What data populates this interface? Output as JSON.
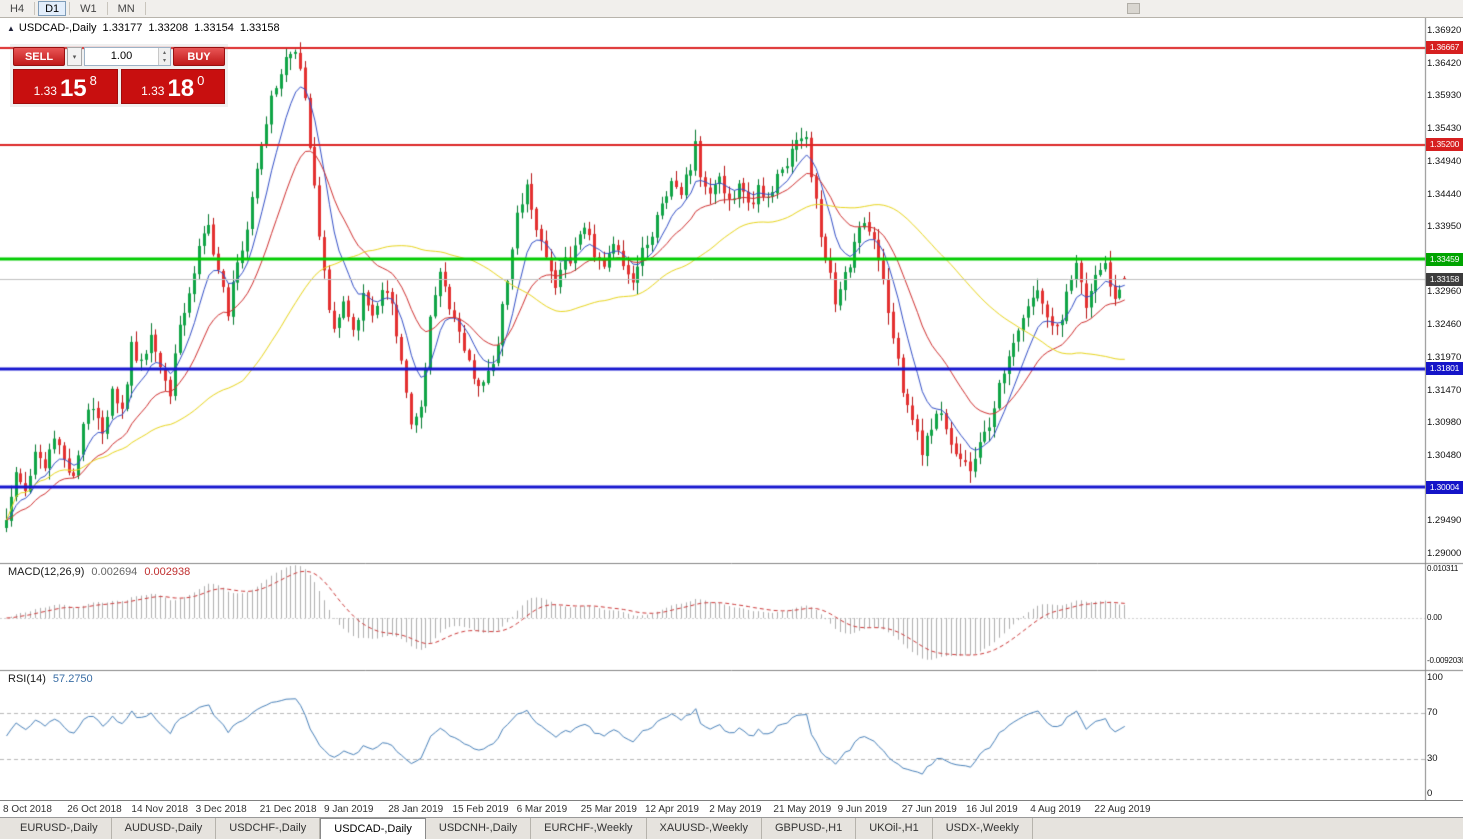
{
  "toolbar": {
    "periods": [
      {
        "label": "H4",
        "active": false
      },
      {
        "label": "D1",
        "active": true
      },
      {
        "label": "W1",
        "active": false
      },
      {
        "label": "MN",
        "active": false
      }
    ]
  },
  "chart_header": {
    "arrow_icon": "▲",
    "symbol": "USDCAD-,Daily",
    "open": "1.33177",
    "high": "1.33208",
    "low": "1.33154",
    "close": "1.33158"
  },
  "trade_panel": {
    "sell_label": "SELL",
    "buy_label": "BUY",
    "volume": "1.00",
    "dropdown_icon": "▾",
    "spin_up_icon": "▴",
    "spin_down_icon": "▾",
    "sell_price": {
      "prefix": "1.33",
      "big": "15",
      "sup": "8"
    },
    "buy_price": {
      "prefix": "1.33",
      "big": "18",
      "sup": "0"
    }
  },
  "price_axis": {
    "labels": [
      "1.36920",
      "1.36420",
      "1.35930",
      "1.35430",
      "1.34940",
      "1.34440",
      "1.33950",
      "1.32960",
      "1.32460",
      "1.31970",
      "1.31470",
      "1.30980",
      "1.30480",
      "1.29490",
      "1.29000"
    ]
  },
  "indicators": {
    "macd": {
      "name": "MACD(12,26,9)",
      "value": "0.002694",
      "signal_value": "0.002938",
      "axis_labels": [
        "0.010311",
        "0.00",
        "-0.0092030"
      ]
    },
    "rsi": {
      "name": "RSI(14)",
      "value": "57.2750",
      "axis_labels": [
        "100",
        "70",
        "30",
        "0"
      ]
    }
  },
  "chart_data": {
    "type": "candlestick",
    "symbol": "USDCAD-",
    "timeframe": "Daily",
    "bars": 233,
    "last_ohlc": {
      "open": 1.33177,
      "high": 1.33208,
      "low": 1.33154,
      "close": 1.33158
    },
    "visible_price_range": {
      "top": 1.3712,
      "bottom": 1.2886
    },
    "date_labels": [
      "8 Oct 2018",
      "26 Oct 2018",
      "14 Nov 2018",
      "3 Dec 2018",
      "21 Dec 2018",
      "9 Jan 2019",
      "28 Jan 2019",
      "15 Feb 2019",
      "6 Mar 2019",
      "25 Mar 2019",
      "12 Apr 2019",
      "2 May 2019",
      "21 May 2019",
      "9 Jun 2019",
      "27 Jun 2019",
      "16 Jul 2019",
      "4 Aug 2019",
      "22 Aug 2019"
    ],
    "hlines": [
      {
        "price": 1.36667,
        "label": "1.36667",
        "color": "#dc2424",
        "tag_bg": "#d62020",
        "width": 2
      },
      {
        "price": 1.352,
        "label": "1.35200",
        "color": "#dc2424",
        "tag_bg": "#d62020",
        "width": 2
      },
      {
        "price": 1.33459,
        "label": "1.33459",
        "color": "#00cc00",
        "tag_bg": "#00a400",
        "width": 3
      },
      {
        "price": 1.33158,
        "label": "1.33158",
        "color": "#c0c0c0",
        "tag_bg": "#3c3c3c",
        "width": 1
      },
      {
        "price": 1.31801,
        "label": "1.31801",
        "color": "#1616d0",
        "tag_bg": "#1414c8",
        "width": 3
      },
      {
        "price": 1.30004,
        "label": "1.30004",
        "color": "#1616d0",
        "tag_bg": "#1414c8",
        "width": 3
      }
    ],
    "moving_averages": [
      {
        "period": 8,
        "method": "ema",
        "color": "#3450c8"
      },
      {
        "period": 20,
        "method": "ema",
        "color": "#d03030"
      },
      {
        "period": 50,
        "method": "sma",
        "color": "#e8d51c"
      }
    ],
    "macd_series": {
      "fast": 12,
      "slow": 26,
      "signal": 9,
      "histogram_color": "#b0b0b0",
      "signal_color": "#cc3838",
      "range": [
        -0.01,
        0.0112
      ]
    },
    "rsi_series": {
      "period": 14,
      "color": "#4a82ba",
      "levels": [
        70,
        30
      ],
      "range": [
        0,
        100
      ]
    },
    "price_path_anchors": [
      [
        0,
        1.2958
      ],
      [
        2,
        1.3025
      ],
      [
        4,
        1.299
      ],
      [
        6,
        1.306
      ],
      [
        8,
        1.303
      ],
      [
        10,
        1.3085
      ],
      [
        12,
        1.304
      ],
      [
        14,
        1.301
      ],
      [
        16,
        1.3095
      ],
      [
        18,
        1.313
      ],
      [
        20,
        1.309
      ],
      [
        22,
        1.314
      ],
      [
        24,
        1.311
      ],
      [
        26,
        1.3215
      ],
      [
        28,
        1.3185
      ],
      [
        30,
        1.3235
      ],
      [
        32,
        1.318
      ],
      [
        34,
        1.314
      ],
      [
        36,
        1.325
      ],
      [
        38,
        1.33
      ],
      [
        40,
        1.336
      ],
      [
        42,
        1.3395
      ],
      [
        44,
        1.333
      ],
      [
        46,
        1.3265
      ],
      [
        48,
        1.334
      ],
      [
        50,
        1.34
      ],
      [
        52,
        1.348
      ],
      [
        54,
        1.356
      ],
      [
        56,
        1.361
      ],
      [
        58,
        1.365
      ],
      [
        60,
        1.366
      ],
      [
        62,
        1.36
      ],
      [
        64,
        1.345
      ],
      [
        66,
        1.332
      ],
      [
        68,
        1.324
      ],
      [
        70,
        1.328
      ],
      [
        72,
        1.324
      ],
      [
        74,
        1.329
      ],
      [
        76,
        1.3255
      ],
      [
        78,
        1.331
      ],
      [
        80,
        1.327
      ],
      [
        82,
        1.319
      ],
      [
        84,
        1.309
      ],
      [
        86,
        1.312
      ],
      [
        88,
        1.326
      ],
      [
        90,
        1.332
      ],
      [
        92,
        1.328
      ],
      [
        94,
        1.324
      ],
      [
        96,
        1.319
      ],
      [
        98,
        1.3155
      ],
      [
        100,
        1.3175
      ],
      [
        102,
        1.322
      ],
      [
        104,
        1.332
      ],
      [
        106,
        1.342
      ],
      [
        108,
        1.345
      ],
      [
        110,
        1.34
      ],
      [
        112,
        1.335
      ],
      [
        114,
        1.33
      ],
      [
        116,
        1.334
      ],
      [
        118,
        1.336
      ],
      [
        120,
        1.339
      ],
      [
        122,
        1.336
      ],
      [
        124,
        1.334
      ],
      [
        126,
        1.3375
      ],
      [
        128,
        1.334
      ],
      [
        130,
        1.332
      ],
      [
        132,
        1.3355
      ],
      [
        134,
        1.3385
      ],
      [
        136,
        1.342
      ],
      [
        138,
        1.3465
      ],
      [
        140,
        1.344
      ],
      [
        142,
        1.349
      ],
      [
        143,
        1.3515
      ],
      [
        144,
        1.348
      ],
      [
        146,
        1.3445
      ],
      [
        148,
        1.3475
      ],
      [
        150,
        1.3435
      ],
      [
        152,
        1.346
      ],
      [
        154,
        1.3425
      ],
      [
        156,
        1.3455
      ],
      [
        158,
        1.344
      ],
      [
        160,
        1.3475
      ],
      [
        162,
        1.3495
      ],
      [
        164,
        1.352
      ],
      [
        166,
        1.354
      ],
      [
        167,
        1.348
      ],
      [
        168,
        1.343
      ],
      [
        170,
        1.335
      ],
      [
        172,
        1.3285
      ],
      [
        174,
        1.332
      ],
      [
        176,
        1.3365
      ],
      [
        178,
        1.3405
      ],
      [
        180,
        1.337
      ],
      [
        182,
        1.331
      ],
      [
        184,
        1.323
      ],
      [
        186,
        1.315
      ],
      [
        188,
        1.31
      ],
      [
        190,
        1.306
      ],
      [
        192,
        1.3085
      ],
      [
        194,
        1.312
      ],
      [
        196,
        1.307
      ],
      [
        198,
        1.3045
      ],
      [
        200,
        1.3028
      ],
      [
        202,
        1.306
      ],
      [
        204,
        1.31
      ],
      [
        206,
        1.315
      ],
      [
        208,
        1.319
      ],
      [
        210,
        1.323
      ],
      [
        212,
        1.3265
      ],
      [
        214,
        1.33
      ],
      [
        216,
        1.326
      ],
      [
        218,
        1.3235
      ],
      [
        220,
        1.329
      ],
      [
        222,
        1.333
      ],
      [
        224,
        1.328
      ],
      [
        226,
        1.332
      ],
      [
        228,
        1.334
      ],
      [
        230,
        1.328
      ],
      [
        232,
        1.3316
      ]
    ]
  },
  "tabs": [
    {
      "label": "EURUSD-,Daily",
      "active": false
    },
    {
      "label": "AUDUSD-,Daily",
      "active": false
    },
    {
      "label": "USDCHF-,Daily",
      "active": false
    },
    {
      "label": "USDCAD-,Daily",
      "active": true
    },
    {
      "label": "USDCNH-,Daily",
      "active": false
    },
    {
      "label": "EURCHF-,Weekly",
      "active": false
    },
    {
      "label": "XAUUSD-,Weekly",
      "active": false
    },
    {
      "label": "GBPUSD-,H1",
      "active": false
    },
    {
      "label": "UKOil-,H1",
      "active": false
    },
    {
      "label": "USDX-,Weekly",
      "active": false
    }
  ],
  "colors": {
    "background": "#ffffff",
    "up_fill": "#10a546",
    "up_border": "#067a31",
    "down_fill": "#e43030",
    "down_border": "#b81414",
    "axis_text": "#111111",
    "trade_button": "#d42222",
    "price_box": "#c80f0f"
  }
}
